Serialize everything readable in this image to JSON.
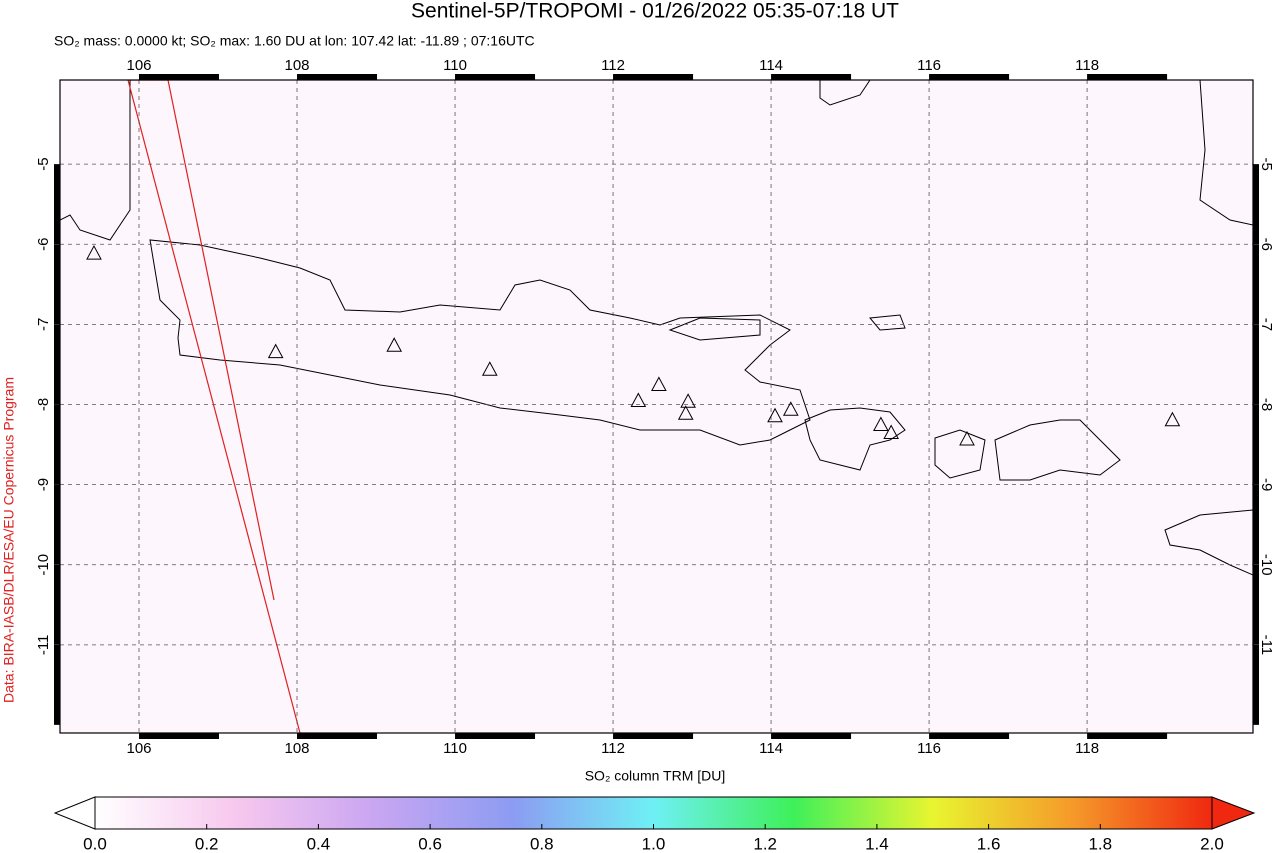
{
  "chart_data": {
    "type": "map",
    "title": "Sentinel-5P/TROPOMI - 01/26/2022 05:35-07:18 UT",
    "subtitle": "SO₂ mass: 0.0000 kt; SO₂ max: 1.60 DU at lon: 107.42 lat: -11.89 ; 07:16UTC",
    "credit": "Data: BIRA-IASB/DLR/ESA/EU Copernicus Program",
    "xlim": [
      105,
      120.1
    ],
    "ylim": [
      -12.1,
      -3.95
    ],
    "xticks": [
      106,
      108,
      110,
      112,
      114,
      116,
      118
    ],
    "yticks": [
      -5,
      -6,
      -7,
      -8,
      -9,
      -10,
      -11
    ],
    "grid": true,
    "volcanoes": {
      "lon": [
        105.43,
        107.73,
        109.23,
        110.44,
        112.32,
        112.58,
        112.95,
        112.92,
        114.05,
        114.25,
        115.39,
        115.52,
        116.48,
        119.08
      ],
      "lat": [
        -6.11,
        -7.34,
        -7.26,
        -7.56,
        -7.95,
        -7.75,
        -7.96,
        -8.11,
        -8.14,
        -8.06,
        -8.25,
        -8.35,
        -8.43,
        -8.19
      ]
    },
    "colorbar": {
      "label": "SO₂ column TRM [DU]",
      "lim": [
        0,
        2
      ],
      "ticks": [
        {
          "value": 0,
          "label": "0.0"
        },
        0.2,
        0.4,
        0.6,
        0.8,
        {
          "value": 1,
          "label": "1.0"
        },
        1.2,
        1.4,
        1.6,
        1.8,
        {
          "value": 2,
          "label": "2.0"
        }
      ],
      "colors": [
        "#ffffff",
        "#f7c8ee",
        "#c9a6f2",
        "#8c9cf2",
        "#6ff0f5",
        "#3ef05a",
        "#e8f530",
        "#f59a2a",
        "#f02810"
      ]
    }
  }
}
